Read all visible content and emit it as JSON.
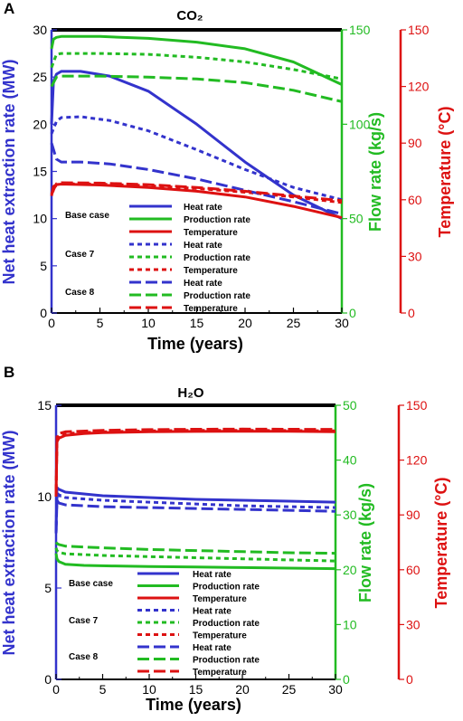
{
  "chart_data": [
    {
      "type": "line",
      "panel": "A",
      "title": "CO₂",
      "xlabel": "Time (years)",
      "ylabel": "Net heat extraction rate (MW)",
      "y2label": "Flow rate (kg/s)",
      "y3label": "Temperature (°C)",
      "xlim": [
        0,
        30
      ],
      "ylim": [
        0,
        30
      ],
      "y2lim": [
        0,
        150
      ],
      "y3lim": [
        0,
        150
      ],
      "xticks": [
        0,
        5,
        10,
        15,
        20,
        25,
        30
      ],
      "yticks": [
        0,
        5,
        10,
        15,
        20,
        25,
        30
      ],
      "y2ticks": [
        0,
        50,
        100,
        150
      ],
      "y3ticks": [
        0,
        30,
        60,
        90,
        120,
        150
      ],
      "colors": {
        "heat": "#3333cc",
        "flow": "#22bb22",
        "temp": "#dd1111"
      },
      "legend_groups": [
        "Base case",
        "Case 7",
        "Case 8"
      ],
      "legend_items": [
        "Heat rate",
        "Production rate",
        "Temperature"
      ],
      "series": [
        {
          "name": "Heat rate",
          "case": "Base case",
          "axis": "y",
          "color": "#3333cc",
          "dash": "solid",
          "x": [
            0,
            0.2,
            0.5,
            1,
            3,
            6,
            10,
            15,
            20,
            25,
            30
          ],
          "y": [
            20.0,
            24.5,
            25.3,
            25.6,
            25.6,
            25.1,
            23.5,
            20.0,
            16.0,
            12.5,
            10.0
          ]
        },
        {
          "name": "Production rate",
          "case": "Base case",
          "axis": "y2",
          "color": "#22bb22",
          "dash": "solid",
          "x": [
            0,
            0.2,
            0.5,
            1,
            5,
            10,
            15,
            20,
            25,
            30
          ],
          "y": [
            140,
            145,
            146,
            146.5,
            146.5,
            145.5,
            143.5,
            140,
            133,
            121
          ]
        },
        {
          "name": "Temperature",
          "case": "Base case",
          "axis": "y3",
          "color": "#dd1111",
          "dash": "solid",
          "x": [
            0,
            0.2,
            0.5,
            1,
            5,
            10,
            15,
            20,
            25,
            30
          ],
          "y": [
            62,
            67,
            68,
            68.3,
            67.8,
            66.5,
            64.5,
            61.5,
            56.5,
            50.5
          ]
        },
        {
          "name": "Heat rate",
          "case": "Case 7",
          "axis": "y",
          "color": "#3333cc",
          "dash": "short",
          "x": [
            0,
            0.5,
            1,
            3,
            6,
            10,
            15,
            20,
            25,
            30
          ],
          "y": [
            19.0,
            20.3,
            20.7,
            20.8,
            20.4,
            19.3,
            17.3,
            15.2,
            13.3,
            12.0
          ]
        },
        {
          "name": "Production rate",
          "case": "Case 7",
          "axis": "y2",
          "color": "#22bb22",
          "dash": "short",
          "x": [
            0,
            0.5,
            1,
            5,
            10,
            15,
            20,
            25,
            30
          ],
          "y": [
            130,
            137,
            137.5,
            137.5,
            137,
            135.5,
            133,
            129,
            124
          ]
        },
        {
          "name": "Temperature",
          "case": "Case 7",
          "axis": "y3",
          "color": "#dd1111",
          "dash": "short",
          "x": [
            0,
            0.5,
            1,
            5,
            10,
            15,
            20,
            25,
            30
          ],
          "y": [
            63,
            68,
            68.5,
            68.3,
            67.5,
            66,
            64,
            61.5,
            58.5
          ]
        },
        {
          "name": "Heat rate",
          "case": "Case 8",
          "axis": "y",
          "color": "#3333cc",
          "dash": "long",
          "x": [
            0,
            0.5,
            1,
            3,
            6,
            10,
            15,
            20,
            25,
            30
          ],
          "y": [
            18.0,
            16.3,
            16.0,
            16.0,
            15.8,
            15.2,
            14.2,
            13.0,
            11.8,
            10.5
          ]
        },
        {
          "name": "Production rate",
          "case": "Case 8",
          "axis": "y2",
          "color": "#22bb22",
          "dash": "long",
          "x": [
            0,
            0.5,
            1,
            5,
            10,
            15,
            20,
            25,
            30
          ],
          "y": [
            120,
            125,
            125.5,
            125.5,
            125,
            124,
            122,
            118,
            112
          ]
        },
        {
          "name": "Temperature",
          "case": "Case 8",
          "axis": "y3",
          "color": "#dd1111",
          "dash": "long",
          "x": [
            0,
            0.5,
            1,
            5,
            10,
            15,
            20,
            25,
            30
          ],
          "y": [
            63,
            68.5,
            69,
            68.8,
            68,
            66.5,
            64.5,
            62,
            59.5
          ]
        }
      ]
    },
    {
      "type": "line",
      "panel": "B",
      "title": "H₂O",
      "xlabel": "Time (years)",
      "ylabel": "Net heat extraction rate (MW)",
      "y2label": "Flow rate (kg/s)",
      "y3label": "Temperature (°C)",
      "xlim": [
        0,
        30
      ],
      "ylim": [
        0,
        15
      ],
      "y2lim": [
        0,
        50
      ],
      "y3lim": [
        0,
        150
      ],
      "xticks": [
        0,
        5,
        10,
        15,
        20,
        25,
        30
      ],
      "yticks": [
        0,
        5,
        10,
        15
      ],
      "y2ticks": [
        0,
        10,
        20,
        30,
        40,
        50
      ],
      "y3ticks": [
        0,
        30,
        60,
        90,
        120,
        150
      ],
      "colors": {
        "heat": "#3333cc",
        "flow": "#22bb22",
        "temp": "#dd1111"
      },
      "legend_groups": [
        "Base case",
        "Case 7",
        "Case 8"
      ],
      "legend_items": [
        "Heat rate",
        "Production rate",
        "Temperature"
      ],
      "series": [
        {
          "name": "Heat rate",
          "case": "Base case",
          "axis": "y",
          "color": "#3333cc",
          "dash": "solid",
          "x": [
            0,
            0.1,
            0.3,
            1,
            5,
            10,
            15,
            20,
            25,
            30
          ],
          "y": [
            8.0,
            10.5,
            10.4,
            10.25,
            10.05,
            9.95,
            9.85,
            9.8,
            9.75,
            9.7
          ]
        },
        {
          "name": "Production rate",
          "case": "Base case",
          "axis": "y2",
          "color": "#22bb22",
          "dash": "solid",
          "x": [
            0,
            0.1,
            0.3,
            1,
            3,
            6,
            10,
            15,
            20,
            25,
            30
          ],
          "y": [
            23,
            22,
            21.5,
            21.0,
            20.8,
            20.7,
            20.6,
            20.5,
            20.4,
            20.3,
            20.2
          ]
        },
        {
          "name": "Temperature",
          "case": "Base case",
          "axis": "y3",
          "color": "#dd1111",
          "dash": "solid",
          "x": [
            0,
            0.1,
            0.3,
            1,
            3,
            5,
            10,
            15,
            20,
            25,
            30
          ],
          "y": [
            100,
            130,
            132,
            133.5,
            134.5,
            135,
            135.5,
            135.7,
            135.8,
            135.8,
            135.5
          ]
        },
        {
          "name": "Heat rate",
          "case": "Case 7",
          "axis": "y",
          "color": "#3333cc",
          "dash": "short",
          "x": [
            0,
            0.1,
            0.3,
            1,
            5,
            10,
            15,
            20,
            25,
            30
          ],
          "y": [
            8.0,
            10.2,
            10.1,
            9.95,
            9.8,
            9.7,
            9.6,
            9.5,
            9.45,
            9.4
          ]
        },
        {
          "name": "Production rate",
          "case": "Case 7",
          "axis": "y2",
          "color": "#22bb22",
          "dash": "short",
          "x": [
            0,
            0.1,
            0.3,
            1,
            5,
            10,
            15,
            20,
            25,
            30
          ],
          "y": [
            24,
            23.5,
            23.2,
            22.9,
            22.6,
            22.4,
            22.2,
            22.0,
            21.8,
            21.6
          ]
        },
        {
          "name": "Temperature",
          "case": "Case 7",
          "axis": "y3",
          "color": "#dd1111",
          "dash": "short",
          "x": [
            0,
            0.1,
            0.3,
            1,
            5,
            10,
            15,
            20,
            25,
            30
          ],
          "y": [
            100,
            132,
            133.5,
            134.5,
            135.5,
            136,
            136.3,
            136.3,
            136.2,
            136
          ]
        },
        {
          "name": "Heat rate",
          "case": "Case 8",
          "axis": "y",
          "color": "#3333cc",
          "dash": "long",
          "x": [
            0,
            0.1,
            0.3,
            1,
            5,
            10,
            15,
            20,
            25,
            30
          ],
          "y": [
            8.0,
            9.8,
            9.65,
            9.55,
            9.45,
            9.4,
            9.35,
            9.3,
            9.25,
            9.2
          ]
        },
        {
          "name": "Production rate",
          "case": "Case 8",
          "axis": "y2",
          "color": "#22bb22",
          "dash": "long",
          "x": [
            0,
            0.1,
            0.3,
            1,
            5,
            10,
            15,
            20,
            25,
            30
          ],
          "y": [
            25,
            24.8,
            24.6,
            24.3,
            24.0,
            23.7,
            23.5,
            23.3,
            23.1,
            23.0
          ]
        },
        {
          "name": "Temperature",
          "case": "Case 8",
          "axis": "y3",
          "color": "#dd1111",
          "dash": "long",
          "x": [
            0,
            0.1,
            0.3,
            1,
            5,
            10,
            15,
            20,
            25,
            30
          ],
          "y": [
            100,
            133,
            134.5,
            135.5,
            136.3,
            136.7,
            136.9,
            137,
            136.9,
            136.8
          ]
        }
      ]
    }
  ],
  "panel_labels": [
    "A",
    "B"
  ]
}
